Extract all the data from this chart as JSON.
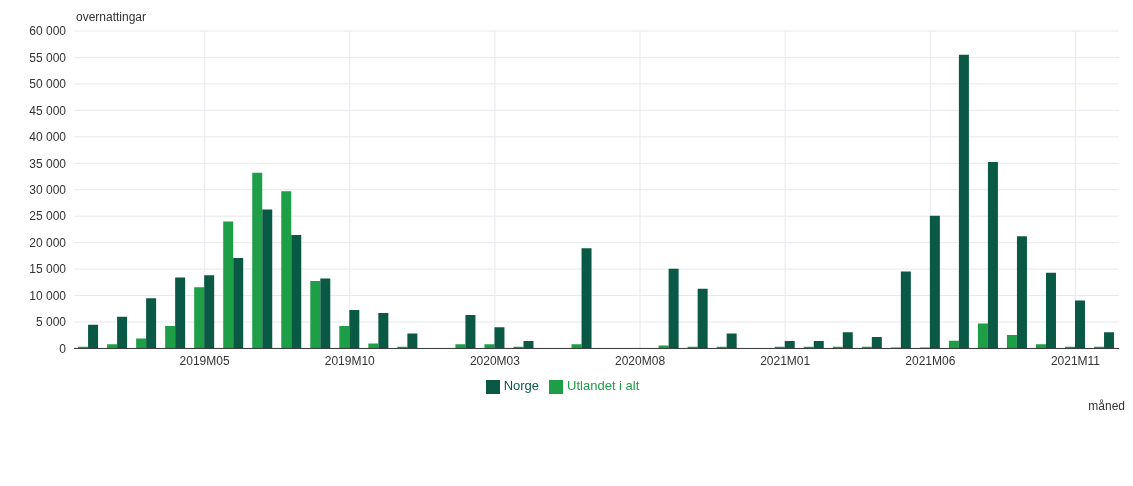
{
  "chart_data": {
    "type": "bar",
    "ylabel": "overnattingar",
    "xlabel": "måned",
    "categories": [
      null,
      null,
      null,
      null,
      "2019M05",
      null,
      null,
      null,
      null,
      "2019M10",
      null,
      null,
      null,
      null,
      "2020M03",
      null,
      null,
      null,
      null,
      "2020M08",
      null,
      null,
      null,
      null,
      "2021M01",
      null,
      null,
      null,
      null,
      "2021M06",
      null,
      null,
      null,
      null,
      "2021M11",
      null
    ],
    "series": [
      {
        "name": "Utlandet i alt",
        "color": "#1f9e48",
        "values": [
          300,
          770,
          1900,
          4250,
          11550,
          24000,
          33200,
          29700,
          12750,
          4250,
          950,
          300,
          null,
          770,
          770,
          300,
          null,
          770,
          null,
          null,
          540,
          300,
          300,
          null,
          300,
          300,
          300,
          300,
          200,
          200,
          1450,
          4700,
          2550,
          770,
          300,
          300
        ]
      },
      {
        "name": "Norge",
        "color": "#0a5945",
        "values": [
          4500,
          6000,
          9500,
          13400,
          13850,
          17100,
          26250,
          21450,
          13200,
          7250,
          6700,
          2800,
          null,
          6300,
          4000,
          1400,
          null,
          18950,
          null,
          null,
          15050,
          11300,
          2800,
          null,
          1400,
          1400,
          3050,
          2150,
          14550,
          25100,
          55500,
          35250,
          21200,
          14300,
          9050,
          3050
        ]
      }
    ],
    "ylim": [
      0,
      60000
    ],
    "yticks": [
      {
        "value": 0,
        "label": "0"
      },
      {
        "value": 5000,
        "label": "5 000"
      },
      {
        "value": 10000,
        "label": "10 000"
      },
      {
        "value": 15000,
        "label": "15 000"
      },
      {
        "value": 20000,
        "label": "20 000"
      },
      {
        "value": 25000,
        "label": "25 000"
      },
      {
        "value": 30000,
        "label": "30 000"
      },
      {
        "value": 35000,
        "label": "35 000"
      },
      {
        "value": 40000,
        "label": "40 000"
      },
      {
        "value": 45000,
        "label": "45 000"
      },
      {
        "value": 50000,
        "label": "50 000"
      },
      {
        "value": 55000,
        "label": "55 000"
      },
      {
        "value": 60000,
        "label": "60 000"
      }
    ],
    "grid": true,
    "legend": "bottom"
  }
}
